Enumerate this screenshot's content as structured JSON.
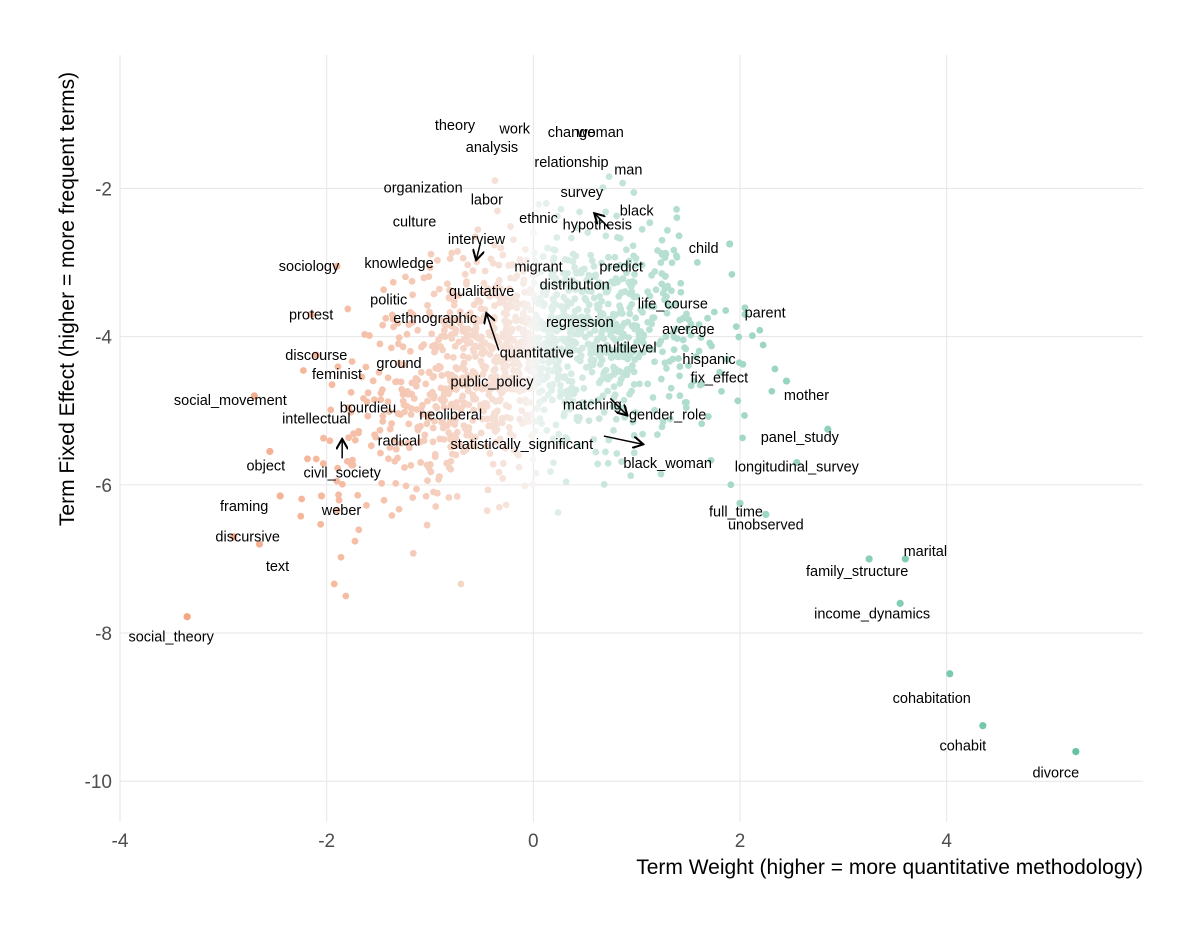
{
  "chart_data": {
    "type": "scatter",
    "title": "",
    "xlabel": "Term Weight (higher = more quantitative methodology)",
    "ylabel": "Term Fixed Effect (higher = more frequent terms)",
    "xlim": [
      -4,
      5.9
    ],
    "ylim": [
      -10.55,
      -0.2
    ],
    "x_ticks": [
      -4,
      -2,
      0,
      2,
      4
    ],
    "y_ticks": [
      -10,
      -8,
      -6,
      -4,
      -2
    ],
    "grid": true,
    "legend": "none",
    "colors": {
      "negative": "#f4a582",
      "neutral": "#f7f7f7",
      "positive": "#66c2a5",
      "arrow": "#000000"
    },
    "labeled_points": [
      {
        "term": "work",
        "x": -0.18,
        "y": -1.3
      },
      {
        "term": "theory",
        "x": -0.7,
        "y": -1.25
      },
      {
        "term": "change",
        "x": 0.35,
        "y": -1.35
      },
      {
        "term": "woman",
        "x": 0.65,
        "y": -1.35
      },
      {
        "term": "analysis",
        "x": -0.4,
        "y": -1.55
      },
      {
        "term": "relationship",
        "x": 0.35,
        "y": -1.75
      },
      {
        "term": "organization",
        "x": -0.95,
        "y": -1.8
      },
      {
        "term": "man",
        "x": 0.9,
        "y": -1.85
      },
      {
        "term": "survey",
        "x": 0.45,
        "y": -2.05
      },
      {
        "term": "labor",
        "x": -0.45,
        "y": -2.15
      },
      {
        "term": "black",
        "x": 1.0,
        "y": -2.3
      },
      {
        "term": "ethnic",
        "x": 0.05,
        "y": -2.4
      },
      {
        "term": "culture",
        "x": -1.15,
        "y": -2.45
      },
      {
        "term": "hypothesis",
        "x": 0.6,
        "y": -2.35
      },
      {
        "term": "interview",
        "x": -0.55,
        "y": -2.95
      },
      {
        "term": "sociology",
        "x": -1.9,
        "y": -3.05
      },
      {
        "term": "knowledge",
        "x": -1.3,
        "y": -2.95
      },
      {
        "term": "child",
        "x": 1.9,
        "y": -2.75
      },
      {
        "term": "migrant",
        "x": 0.05,
        "y": -3.0
      },
      {
        "term": "predict",
        "x": 0.85,
        "y": -3.0
      },
      {
        "term": "distribution",
        "x": 0.4,
        "y": -3.3
      },
      {
        "term": "qualitative",
        "x": -0.5,
        "y": -3.6
      },
      {
        "term": "politic",
        "x": -1.4,
        "y": -3.5
      },
      {
        "term": "life_course",
        "x": 1.35,
        "y": -3.55
      },
      {
        "term": "protest",
        "x": -2.15,
        "y": -3.7
      },
      {
        "term": "ethnographic",
        "x": -0.95,
        "y": -3.75
      },
      {
        "term": "regression",
        "x": 0.45,
        "y": -3.8
      },
      {
        "term": "parent",
        "x": 2.05,
        "y": -3.7
      },
      {
        "term": "average",
        "x": 1.5,
        "y": -3.9
      },
      {
        "term": "discourse",
        "x": -2.1,
        "y": -4.25
      },
      {
        "term": "quantitative",
        "x": -0.45,
        "y": -3.7
      },
      {
        "term": "multilevel",
        "x": 0.9,
        "y": -4.15
      },
      {
        "term": "ground",
        "x": -1.3,
        "y": -4.3
      },
      {
        "term": "hispanic",
        "x": 1.7,
        "y": -4.25
      },
      {
        "term": "feminist",
        "x": -1.9,
        "y": -4.45
      },
      {
        "term": "social_movement",
        "x": -2.7,
        "y": -4.8
      },
      {
        "term": "public_policy",
        "x": -0.4,
        "y": -4.55
      },
      {
        "term": "matching",
        "x": 0.9,
        "y": -5.05
      },
      {
        "term": "fix_effect",
        "x": 1.8,
        "y": -4.5
      },
      {
        "term": "mother",
        "x": 2.45,
        "y": -4.6
      },
      {
        "term": "bourdieu",
        "x": -1.6,
        "y": -4.9
      },
      {
        "term": "neoliberal",
        "x": -0.8,
        "y": -5.0
      },
      {
        "term": "gender_role",
        "x": 1.3,
        "y": -5.0
      },
      {
        "term": "intellectual",
        "x": -2.1,
        "y": -5.05
      },
      {
        "term": "panel_study",
        "x": 2.85,
        "y": -5.25
      },
      {
        "term": "radical",
        "x": -1.3,
        "y": -5.35
      },
      {
        "term": "statistically_significant",
        "x": 1.05,
        "y": -5.45
      },
      {
        "term": "civil_society",
        "x": -1.85,
        "y": -5.4
      },
      {
        "term": "black_woman",
        "x": 1.3,
        "y": -5.65
      },
      {
        "term": "longitudinal_survey",
        "x": 2.55,
        "y": -5.7
      },
      {
        "term": "object",
        "x": -2.55,
        "y": -5.55
      },
      {
        "term": "framing",
        "x": -2.45,
        "y": -6.15
      },
      {
        "term": "full_time",
        "x": 2.0,
        "y": -6.25
      },
      {
        "term": "weber",
        "x": -2.05,
        "y": -6.15
      },
      {
        "term": "discursive",
        "x": -2.9,
        "y": -6.7
      },
      {
        "term": "unobserved",
        "x": 2.25,
        "y": -6.4
      },
      {
        "term": "marital",
        "x": 3.6,
        "y": -7.0
      },
      {
        "term": "text",
        "x": -2.65,
        "y": -6.8
      },
      {
        "term": "family_structure",
        "x": 3.25,
        "y": -7.0
      },
      {
        "term": "income_dynamics",
        "x": 3.55,
        "y": -7.6
      },
      {
        "term": "social_theory",
        "x": -3.35,
        "y": -7.78
      },
      {
        "term": "cohabitation",
        "x": 4.03,
        "y": -8.55
      },
      {
        "term": "cohabit",
        "x": 4.35,
        "y": -9.25
      },
      {
        "term": "divorce",
        "x": 5.25,
        "y": -9.6
      }
    ],
    "cloud_note_free": true
  }
}
